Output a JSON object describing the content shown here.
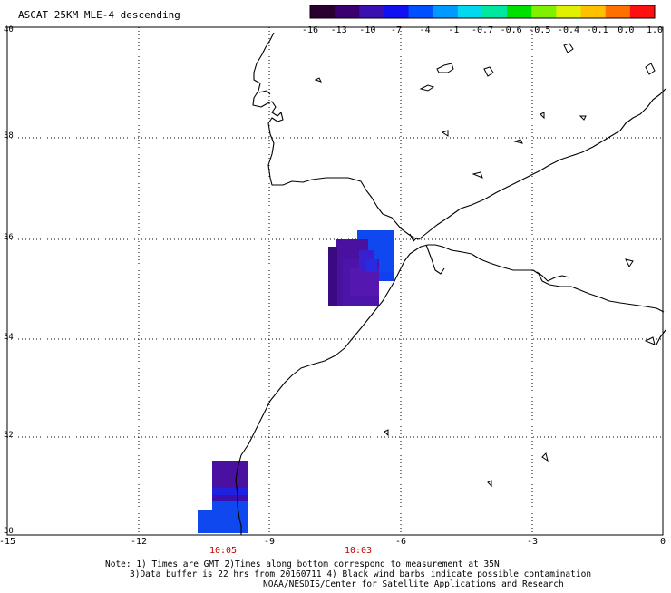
{
  "header": {
    "title": "ASCAT 25KM MLE-4 descending"
  },
  "colorbar": {
    "colors": [
      "#2a0030",
      "#3a0070",
      "#3a10b0",
      "#1010f0",
      "#0050ff",
      "#0099ff",
      "#00d8f0",
      "#00e8a0",
      "#00e000",
      "#80f000",
      "#e0f000",
      "#ffc000",
      "#ff7000",
      "#ff1010"
    ],
    "labels": [
      "-16",
      "-13",
      "-10",
      "-7",
      "-4",
      "-1",
      "-0.7",
      "-0.6",
      "-0.5",
      "-0.4",
      "-0.1",
      "0.0",
      "1.0"
    ]
  },
  "map": {
    "lon_labels": [
      "-15",
      "-12",
      "-9",
      "-6",
      "-3",
      "0"
    ],
    "lat_labels": [
      "40",
      "38",
      "36",
      "34",
      "32",
      "30"
    ],
    "time_labels": [
      "10:05",
      "10:03"
    ],
    "time_color": "#c00000"
  },
  "footer": {
    "line1": "Note: 1) Times are GMT 2)Times along bottom correspond to measurement at 35N",
    "line2": "3)Data buffer is 22 hrs from 20160711 4) Black wind barbs indicate possible contamination",
    "line3": "NOAA/NESDIS/Center for Satellite Applications and Research"
  }
}
